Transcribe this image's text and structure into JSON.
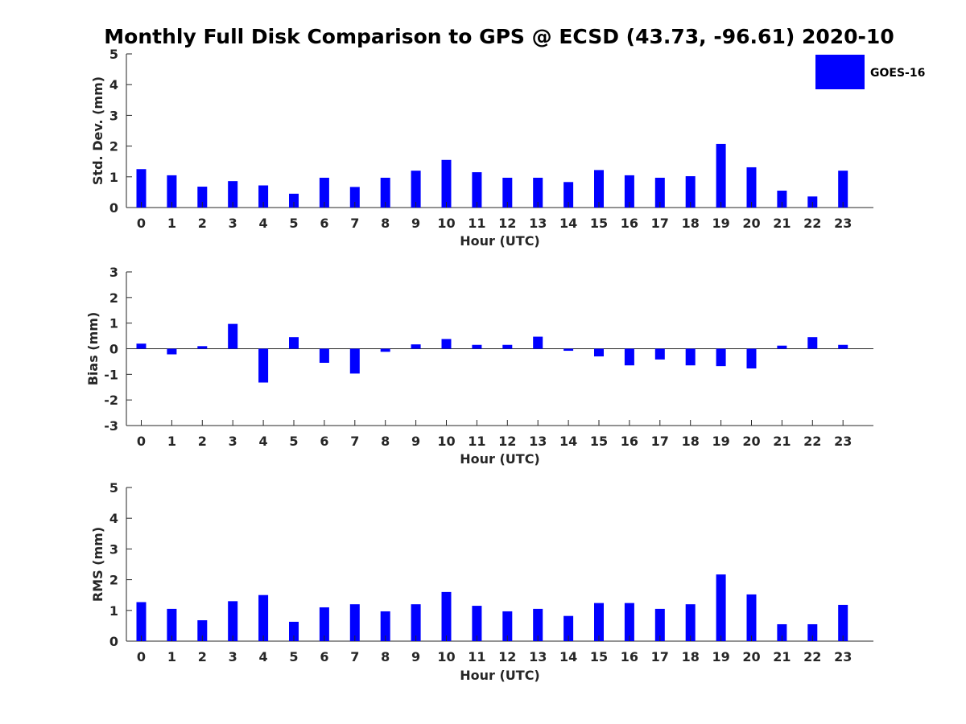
{
  "chart_data": {
    "title": "Monthly Full Disk Comparison to GPS @ ECSD (43.73, -96.61) 2020-10",
    "legend": {
      "label": "GOES-16",
      "color": "#0000ff",
      "placement": "top-right"
    },
    "panels": [
      {
        "type": "bar",
        "xlabel": "Hour (UTC)",
        "ylabel": "Std. Dev. (mm)",
        "ylim": [
          0,
          5
        ],
        "yticks": [
          "0",
          "1",
          "2",
          "3",
          "4",
          "5"
        ],
        "categories": [
          "0",
          "1",
          "2",
          "3",
          "4",
          "5",
          "6",
          "7",
          "8",
          "9",
          "10",
          "11",
          "12",
          "13",
          "14",
          "15",
          "16",
          "17",
          "18",
          "19",
          "20",
          "21",
          "22",
          "23"
        ],
        "values": [
          1.25,
          1.05,
          0.68,
          0.86,
          0.72,
          0.45,
          0.97,
          0.67,
          0.97,
          1.2,
          1.55,
          1.15,
          0.97,
          0.97,
          0.83,
          1.22,
          1.05,
          0.97,
          1.02,
          2.07,
          1.31,
          0.55,
          0.36,
          1.2
        ]
      },
      {
        "type": "bar",
        "xlabel": "Hour (UTC)",
        "ylabel": "Bias (mm)",
        "ylim": [
          -3,
          3
        ],
        "yticks": [
          "-3",
          "-2",
          "-1",
          "0",
          "1",
          "2",
          "3"
        ],
        "categories": [
          "0",
          "1",
          "2",
          "3",
          "4",
          "5",
          "6",
          "7",
          "8",
          "9",
          "10",
          "11",
          "12",
          "13",
          "14",
          "15",
          "16",
          "17",
          "18",
          "19",
          "20",
          "21",
          "22",
          "23"
        ],
        "values": [
          0.2,
          -0.22,
          0.1,
          0.97,
          -1.32,
          0.45,
          -0.55,
          -0.97,
          -0.12,
          0.17,
          0.38,
          0.15,
          0.15,
          0.47,
          -0.08,
          -0.3,
          -0.65,
          -0.42,
          -0.65,
          -0.68,
          -0.77,
          0.12,
          0.45,
          0.15
        ]
      },
      {
        "type": "bar",
        "xlabel": "Hour (UTC)",
        "ylabel": "RMS (mm)",
        "ylim": [
          0,
          5
        ],
        "yticks": [
          "0",
          "1",
          "2",
          "3",
          "4",
          "5"
        ],
        "categories": [
          "0",
          "1",
          "2",
          "3",
          "4",
          "5",
          "6",
          "7",
          "8",
          "9",
          "10",
          "11",
          "12",
          "13",
          "14",
          "15",
          "16",
          "17",
          "18",
          "19",
          "20",
          "21",
          "22",
          "23"
        ],
        "values": [
          1.27,
          1.05,
          0.68,
          1.3,
          1.5,
          0.63,
          1.1,
          1.2,
          0.97,
          1.2,
          1.6,
          1.15,
          0.97,
          1.05,
          0.82,
          1.24,
          1.24,
          1.05,
          1.2,
          2.17,
          1.52,
          0.55,
          0.55,
          1.18
        ]
      }
    ]
  }
}
